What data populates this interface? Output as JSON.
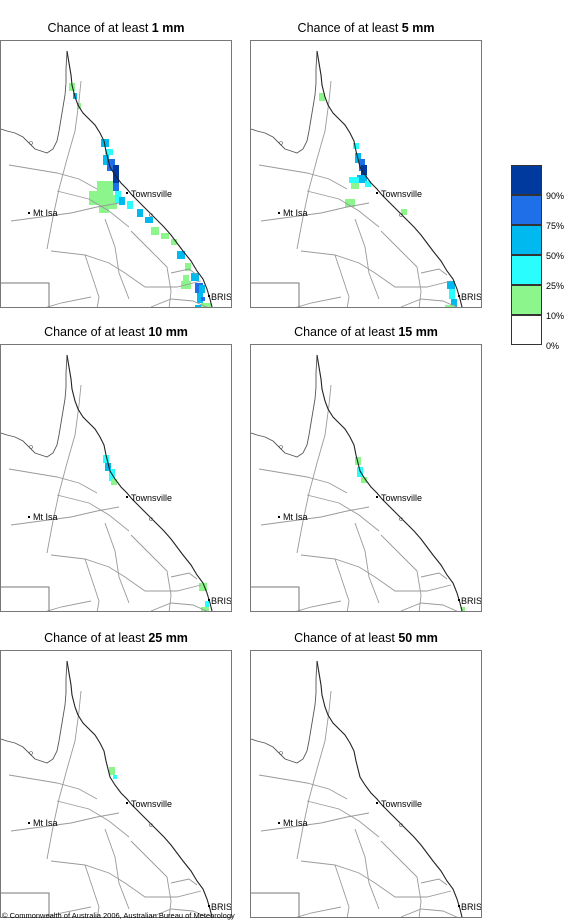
{
  "panels": [
    {
      "title_prefix": "Chance of at least",
      "amount": "1 mm"
    },
    {
      "title_prefix": "Chance of at least",
      "amount": "5 mm"
    },
    {
      "title_prefix": "Chance of at least",
      "amount": "10 mm"
    },
    {
      "title_prefix": "Chance of at least",
      "amount": "15 mm"
    },
    {
      "title_prefix": "Chance of at least",
      "amount": "25 mm"
    },
    {
      "title_prefix": "Chance of at least",
      "amount": "50 mm"
    }
  ],
  "towns": {
    "townsville": "Townsville",
    "mt_isa": "Mt Isa",
    "brisbane": "BRIS"
  },
  "legend": {
    "labels": [
      "90%",
      "75%",
      "50%",
      "25%",
      "10%",
      "0%"
    ],
    "colors": [
      "#003a9e",
      "#1f6fe8",
      "#00b9ee",
      "#29fdfd",
      "#8cf58c",
      "#ffffff"
    ]
  },
  "copyright": "© Commonwealth of Australia 2006, Australian Bureau of Meteorology"
}
